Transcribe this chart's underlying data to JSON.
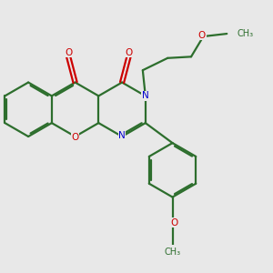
{
  "bg_color": "#e8e8e8",
  "bc": "#2d6e2d",
  "nc": "#0000cc",
  "oc": "#cc0000",
  "lw": 1.6,
  "fs": 7.5,
  "xlim": [
    -5.5,
    4.5
  ],
  "ylim": [
    -4.5,
    3.5
  ]
}
